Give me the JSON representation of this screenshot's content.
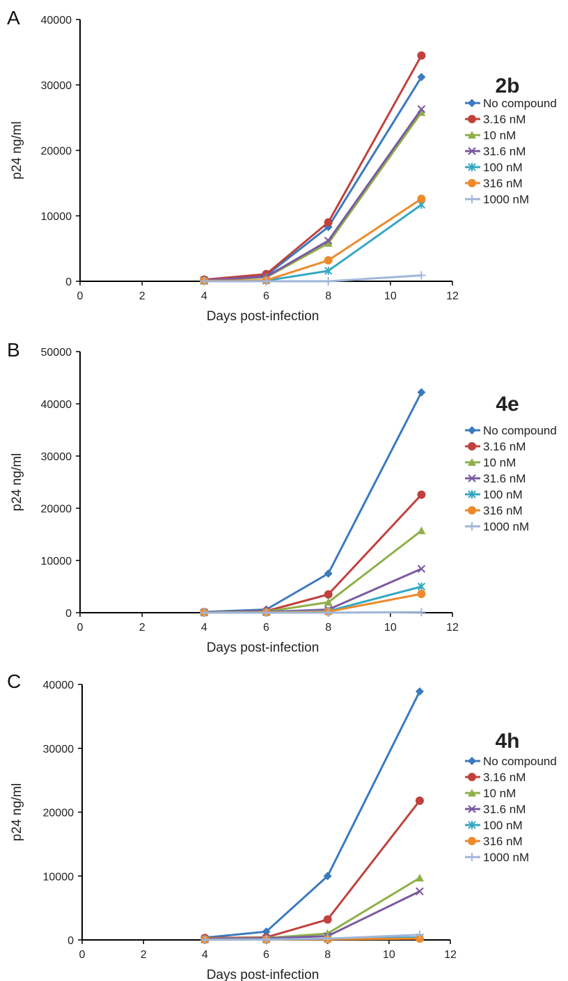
{
  "colors": {
    "No compound": "#3a7abf",
    "3.16 nM": "#c0413d",
    "10 nM": "#8fb04a",
    "31.6 nM": "#7a5aa0",
    "100 nM": "#33a8c4",
    "316 nM": "#ee8a2c",
    "1000 nM": "#9fb6d9"
  },
  "chart_data": [
    {
      "panel_label": "A",
      "type": "line",
      "legend_title": "2b",
      "xlabel": "Days post-infection",
      "ylabel": "p24 ng/ml",
      "xlim": [
        0,
        12
      ],
      "ylim": [
        0,
        40000
      ],
      "xticks": [
        "0",
        "2",
        "4",
        "6",
        "8",
        "10",
        "12"
      ],
      "yticks": [
        "0",
        "10000",
        "20000",
        "30000",
        "40000"
      ],
      "x": [
        4,
        6,
        8,
        11
      ],
      "series": [
        {
          "name": "No compound",
          "marker": "diamond",
          "values": [
            200,
            900,
            8300,
            31200
          ]
        },
        {
          "name": "3.16 nM",
          "marker": "circle",
          "values": [
            250,
            1100,
            9000,
            34500
          ]
        },
        {
          "name": "10 nM",
          "marker": "triangle",
          "values": [
            150,
            600,
            5800,
            25800
          ]
        },
        {
          "name": "31.6 nM",
          "marker": "x",
          "values": [
            180,
            700,
            6200,
            26300
          ]
        },
        {
          "name": "100 nM",
          "marker": "star",
          "values": [
            50,
            100,
            1600,
            11700
          ]
        },
        {
          "name": "316 nM",
          "marker": "circle",
          "values": [
            60,
            150,
            3200,
            12600
          ]
        },
        {
          "name": "1000 nM",
          "marker": "plus",
          "values": [
            0,
            0,
            0,
            900
          ]
        }
      ]
    },
    {
      "panel_label": "B",
      "type": "line",
      "legend_title": "4e",
      "xlabel": "Days post-infection",
      "ylabel": "p24 ng/ml",
      "xlim": [
        0,
        12
      ],
      "ylim": [
        0,
        50000
      ],
      "xticks": [
        "0",
        "2",
        "4",
        "6",
        "8",
        "10",
        "12"
      ],
      "yticks": [
        "0",
        "10000",
        "20000",
        "30000",
        "40000",
        "50000"
      ],
      "x": [
        4,
        6,
        8,
        11
      ],
      "series": [
        {
          "name": "No compound",
          "marker": "diamond",
          "values": [
            150,
            600,
            7500,
            42200
          ]
        },
        {
          "name": "3.16 nM",
          "marker": "circle",
          "values": [
            100,
            300,
            3500,
            22600
          ]
        },
        {
          "name": "10 nM",
          "marker": "triangle",
          "values": [
            80,
            200,
            2000,
            15700
          ]
        },
        {
          "name": "31.6 nM",
          "marker": "x",
          "values": [
            60,
            150,
            600,
            8400
          ]
        },
        {
          "name": "100 nM",
          "marker": "star",
          "values": [
            30,
            80,
            300,
            5000
          ]
        },
        {
          "name": "316 nM",
          "marker": "circle",
          "values": [
            20,
            50,
            200,
            3600
          ]
        },
        {
          "name": "1000 nM",
          "marker": "plus",
          "values": [
            0,
            0,
            0,
            100
          ]
        }
      ]
    },
    {
      "panel_label": "C",
      "type": "line",
      "legend_title": "4h",
      "xlabel": "Days post-infection",
      "ylabel": "p24 ng/ml",
      "xlim": [
        0,
        12
      ],
      "ylim": [
        0,
        40000
      ],
      "xticks": [
        "0",
        "2",
        "4",
        "6",
        "8",
        "10",
        "12"
      ],
      "yticks": [
        "0",
        "10000",
        "20000",
        "30000",
        "40000"
      ],
      "x": [
        4,
        6,
        8,
        11
      ],
      "series": [
        {
          "name": "No compound",
          "marker": "diamond",
          "values": [
            350,
            1300,
            10000,
            38900
          ]
        },
        {
          "name": "3.16 nM",
          "marker": "circle",
          "values": [
            300,
            400,
            3200,
            21800
          ]
        },
        {
          "name": "10 nM",
          "marker": "triangle",
          "values": [
            200,
            300,
            1000,
            9700
          ]
        },
        {
          "name": "31.6 nM",
          "marker": "x",
          "values": [
            150,
            250,
            600,
            7600
          ]
        },
        {
          "name": "100 nM",
          "marker": "star",
          "values": [
            50,
            80,
            150,
            400
          ]
        },
        {
          "name": "316 nM",
          "marker": "circle",
          "values": [
            40,
            60,
            100,
            200
          ]
        },
        {
          "name": "1000 nM",
          "marker": "plus",
          "values": [
            30,
            50,
            200,
            800
          ]
        }
      ]
    }
  ]
}
